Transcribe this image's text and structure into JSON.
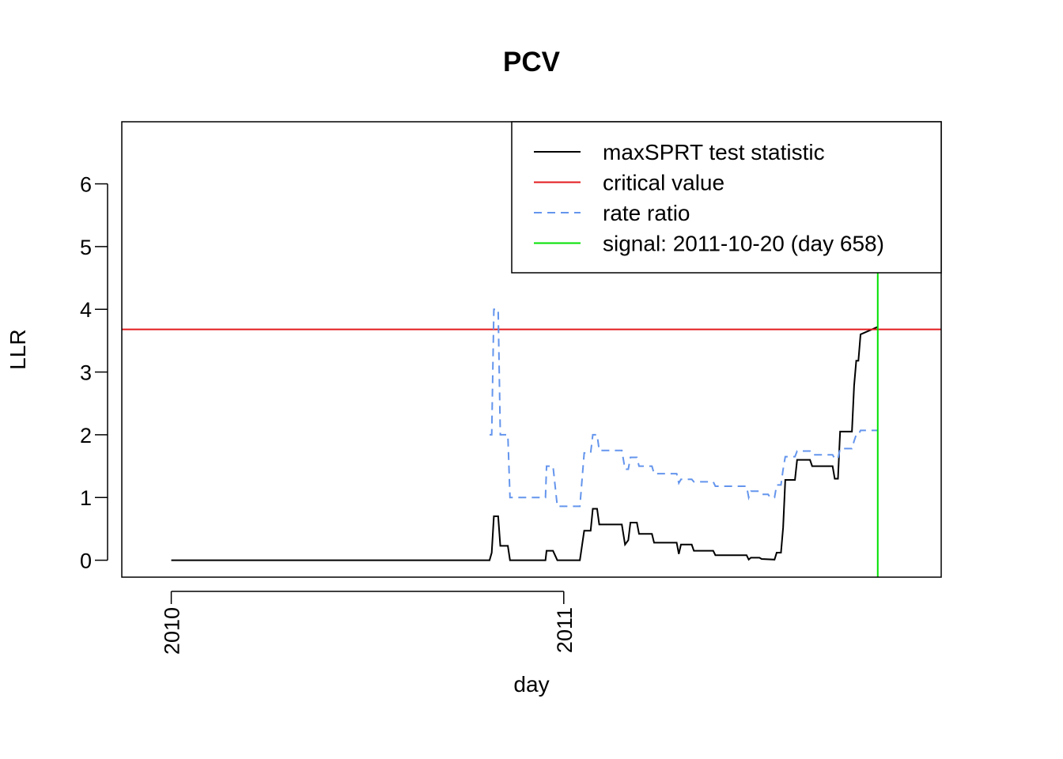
{
  "chart_data": {
    "type": "line",
    "title": "PCV",
    "xlabel": "day",
    "ylabel": "LLR",
    "x_unit": "date",
    "xlim": [
      "2009-11-16",
      "2011-12-18"
    ],
    "ylim": [
      -0.27,
      6.99
    ],
    "x_ticks": [
      {
        "date": "2010-01-01",
        "label": "2010"
      },
      {
        "date": "2011-01-01",
        "label": "2011"
      }
    ],
    "y_ticks": [
      0,
      1,
      2,
      3,
      4,
      5,
      6
    ],
    "y_tick_labels": [
      "0",
      "1",
      "2",
      "3",
      "4",
      "5",
      "6"
    ],
    "grid": false,
    "legend_position": "top-right",
    "critical_value": 3.68,
    "signal_date": "2011-10-20",
    "series": [
      {
        "name": "maxSPRT test statistic",
        "color": "#000000",
        "dash": "solid",
        "points": [
          [
            "2010-01-01",
            0
          ],
          [
            "2010-10-24",
            0
          ],
          [
            "2010-10-26",
            0.12
          ],
          [
            "2010-10-28",
            0.7
          ],
          [
            "2010-11-01",
            0.7
          ],
          [
            "2010-11-03",
            0.23
          ],
          [
            "2010-11-10",
            0.23
          ],
          [
            "2010-11-12",
            0
          ],
          [
            "2010-12-15",
            0
          ],
          [
            "2010-12-16",
            0.15
          ],
          [
            "2010-12-22",
            0.15
          ],
          [
            "2010-12-26",
            0
          ],
          [
            "2011-01-16",
            0
          ],
          [
            "2011-01-20",
            0.47
          ],
          [
            "2011-01-26",
            0.47
          ],
          [
            "2011-01-28",
            0.82
          ],
          [
            "2011-02-01",
            0.82
          ],
          [
            "2011-02-03",
            0.57
          ],
          [
            "2011-02-24",
            0.57
          ],
          [
            "2011-02-27",
            0.25
          ],
          [
            "2011-03-02",
            0.32
          ],
          [
            "2011-03-04",
            0.6
          ],
          [
            "2011-03-10",
            0.6
          ],
          [
            "2011-03-12",
            0.42
          ],
          [
            "2011-03-24",
            0.42
          ],
          [
            "2011-03-26",
            0.28
          ],
          [
            "2011-04-16",
            0.28
          ],
          [
            "2011-04-18",
            0.1
          ],
          [
            "2011-04-20",
            0.25
          ],
          [
            "2011-04-30",
            0.25
          ],
          [
            "2011-05-02",
            0.15
          ],
          [
            "2011-05-20",
            0.15
          ],
          [
            "2011-05-22",
            0.08
          ],
          [
            "2011-06-20",
            0.08
          ],
          [
            "2011-06-22",
            0.01
          ],
          [
            "2011-06-24",
            0.04
          ],
          [
            "2011-07-02",
            0.04
          ],
          [
            "2011-07-04",
            0.02
          ],
          [
            "2011-07-16",
            0.01
          ],
          [
            "2011-07-18",
            0.12
          ],
          [
            "2011-07-22",
            0.12
          ],
          [
            "2011-07-24",
            0.52
          ],
          [
            "2011-07-26",
            1.28
          ],
          [
            "2011-08-04",
            1.28
          ],
          [
            "2011-08-06",
            1.6
          ],
          [
            "2011-08-18",
            1.6
          ],
          [
            "2011-08-20",
            1.5
          ],
          [
            "2011-09-08",
            1.5
          ],
          [
            "2011-09-10",
            1.3
          ],
          [
            "2011-09-13",
            1.3
          ],
          [
            "2011-09-15",
            2.05
          ],
          [
            "2011-09-26",
            2.05
          ],
          [
            "2011-09-28",
            2.78
          ],
          [
            "2011-09-30",
            3.18
          ],
          [
            "2011-10-02",
            3.18
          ],
          [
            "2011-10-04",
            3.6
          ],
          [
            "2011-10-20",
            3.72
          ]
        ]
      },
      {
        "name": "critical value",
        "color": "#e31a1c",
        "dash": "solid",
        "points": [
          [
            "2009-11-16",
            3.68
          ],
          [
            "2011-12-18",
            3.68
          ]
        ]
      },
      {
        "name": "rate ratio",
        "color": "#6495ed",
        "dash": "dashed",
        "points": [
          [
            "2010-10-24",
            2.0
          ],
          [
            "2010-10-26",
            2.0
          ],
          [
            "2010-10-28",
            4.0
          ],
          [
            "2010-11-01",
            4.0
          ],
          [
            "2010-11-03",
            2.0
          ],
          [
            "2010-11-10",
            2.0
          ],
          [
            "2010-11-12",
            1.0
          ],
          [
            "2010-12-15",
            1.0
          ],
          [
            "2010-12-16",
            1.5
          ],
          [
            "2010-12-22",
            1.5
          ],
          [
            "2010-12-26",
            0.86
          ],
          [
            "2011-01-16",
            0.86
          ],
          [
            "2011-01-20",
            1.71
          ],
          [
            "2011-01-26",
            1.71
          ],
          [
            "2011-01-28",
            2.0
          ],
          [
            "2011-02-01",
            2.0
          ],
          [
            "2011-02-03",
            1.75
          ],
          [
            "2011-02-24",
            1.75
          ],
          [
            "2011-02-27",
            1.45
          ],
          [
            "2011-03-02",
            1.45
          ],
          [
            "2011-03-04",
            1.64
          ],
          [
            "2011-03-10",
            1.64
          ],
          [
            "2011-03-12",
            1.5
          ],
          [
            "2011-03-24",
            1.5
          ],
          [
            "2011-03-26",
            1.38
          ],
          [
            "2011-04-16",
            1.38
          ],
          [
            "2011-04-18",
            1.23
          ],
          [
            "2011-04-20",
            1.29
          ],
          [
            "2011-04-30",
            1.29
          ],
          [
            "2011-05-02",
            1.25
          ],
          [
            "2011-05-20",
            1.25
          ],
          [
            "2011-05-22",
            1.18
          ],
          [
            "2011-06-20",
            1.18
          ],
          [
            "2011-06-22",
            1.0
          ],
          [
            "2011-06-24",
            1.1
          ],
          [
            "2011-07-02",
            1.1
          ],
          [
            "2011-07-04",
            1.05
          ],
          [
            "2011-07-10",
            1.05
          ],
          [
            "2011-07-12",
            1.0
          ],
          [
            "2011-07-16",
            1.0
          ],
          [
            "2011-07-18",
            1.2
          ],
          [
            "2011-07-22",
            1.2
          ],
          [
            "2011-07-24",
            1.45
          ],
          [
            "2011-07-26",
            1.65
          ],
          [
            "2011-08-04",
            1.65
          ],
          [
            "2011-08-06",
            1.74
          ],
          [
            "2011-08-18",
            1.74
          ],
          [
            "2011-08-20",
            1.68
          ],
          [
            "2011-09-08",
            1.68
          ],
          [
            "2011-09-10",
            1.62
          ],
          [
            "2011-09-13",
            1.62
          ],
          [
            "2011-09-15",
            1.78
          ],
          [
            "2011-09-26",
            1.78
          ],
          [
            "2011-09-28",
            1.9
          ],
          [
            "2011-09-30",
            2.0
          ],
          [
            "2011-10-02",
            2.0
          ],
          [
            "2011-10-04",
            2.07
          ],
          [
            "2011-10-20",
            2.07
          ]
        ]
      },
      {
        "name": "signal: 2011-10-20 (day 658)",
        "color": "#00e000",
        "dash": "solid",
        "points": [
          [
            "2011-10-20",
            -0.27
          ],
          [
            "2011-10-20",
            6.99
          ]
        ]
      }
    ]
  }
}
